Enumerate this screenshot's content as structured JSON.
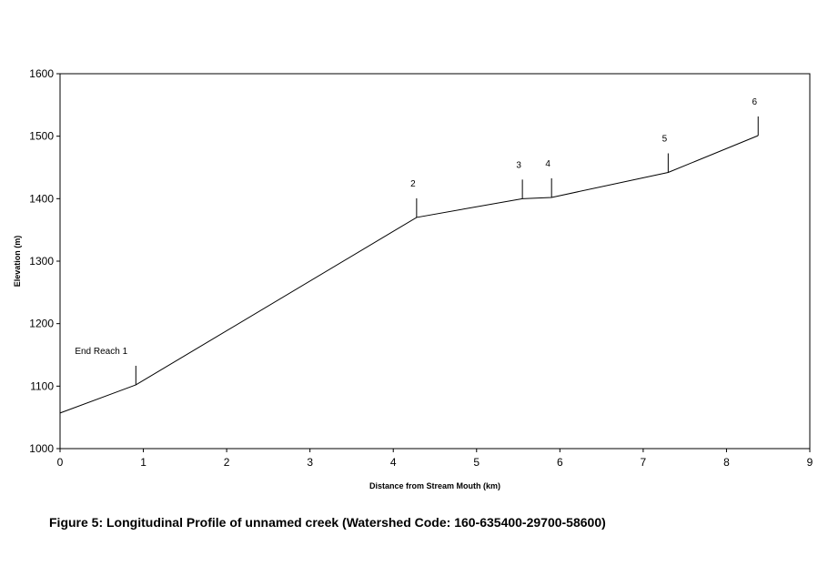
{
  "caption": "Figure 5:  Longitudinal Profile of unnamed creek (Watershed Code: 160-635400-29700-58600)",
  "chart_data": {
    "type": "line",
    "title": "",
    "xlabel": "Distance from Stream Mouth (km)",
    "ylabel": "Elevation (m)",
    "xlim": [
      0,
      9
    ],
    "ylim": [
      1000,
      1600
    ],
    "xticks": [
      0,
      1,
      2,
      3,
      4,
      5,
      6,
      7,
      8,
      9
    ],
    "yticks": [
      1000,
      1100,
      1200,
      1300,
      1400,
      1500,
      1600
    ],
    "grid": false,
    "legend": "none",
    "series": [
      {
        "x": [
          0,
          0.91,
          4.28,
          5.55,
          5.9,
          7.3,
          8.38
        ],
        "y": [
          1057,
          1102,
          1370,
          1400,
          1402,
          1442,
          1501
        ]
      }
    ],
    "annotations": [
      {
        "label": "End Reach 1",
        "x": 0.91,
        "y": 1102
      },
      {
        "label": "2",
        "x": 4.28,
        "y": 1370
      },
      {
        "label": "3",
        "x": 5.55,
        "y": 1400
      },
      {
        "label": "4",
        "x": 5.9,
        "y": 1402
      },
      {
        "label": "5",
        "x": 7.3,
        "y": 1442
      },
      {
        "label": "6",
        "x": 8.38,
        "y": 1501
      }
    ]
  }
}
